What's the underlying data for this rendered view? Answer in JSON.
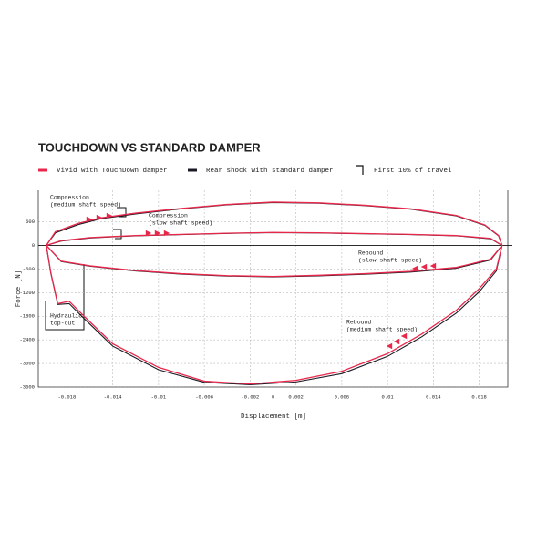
{
  "chart_data": {
    "type": "line",
    "title": "TOUCHDOWN VS STANDARD DAMPER",
    "x_label": "Displacement [m]",
    "y_label": "Force [N]",
    "legend_extra": "First 10% of travel",
    "xlim": [
      -0.0205,
      0.0205
    ],
    "ylim": [
      -3600,
      1400
    ],
    "xticks": [
      -0.018,
      -0.014,
      -0.01,
      -0.006,
      -0.002,
      0,
      0.002,
      0.006,
      0.01,
      0.014,
      0.018
    ],
    "yticks": [
      600,
      0,
      -600,
      -1200,
      -1800,
      -2400,
      -3000,
      -3600
    ],
    "grid": true,
    "series": [
      {
        "name": "Vivid with TouchDown damper",
        "color": "#e8274b",
        "x": [
          -0.0198,
          -0.019,
          -0.017,
          -0.015,
          -0.012,
          -0.008,
          -0.004,
          0,
          0.004,
          0.008,
          0.012,
          0.016,
          0.0185,
          0.0197,
          0.02,
          0.0195,
          0.018,
          0.016,
          0.013,
          0.01,
          0.006,
          0.002,
          -0.002,
          -0.006,
          -0.01,
          -0.014,
          -0.0165,
          -0.0178,
          -0.0188,
          -0.0194,
          -0.0198,
          null,
          -0.0198,
          -0.0185,
          -0.016,
          -0.012,
          -0.008,
          -0.004,
          0,
          0.004,
          0.008,
          0.012,
          0.016,
          0.019,
          0.02,
          0.019,
          0.016,
          0.012,
          0.008,
          0.004,
          0,
          -0.004,
          -0.008,
          -0.012,
          -0.016,
          -0.0185,
          -0.0198
        ],
        "values": [
          0,
          350,
          560,
          700,
          820,
          940,
          1040,
          1100,
          1080,
          1020,
          930,
          760,
          520,
          250,
          0,
          -600,
          -1100,
          -1650,
          -2250,
          -2750,
          -3200,
          -3430,
          -3520,
          -3450,
          -3100,
          -2500,
          -1800,
          -1420,
          -1480,
          -700,
          0,
          null,
          0,
          120,
          200,
          250,
          280,
          310,
          330,
          320,
          300,
          280,
          250,
          180,
          0,
          -350,
          -560,
          -660,
          -720,
          -760,
          -790,
          -770,
          -720,
          -640,
          -520,
          -400,
          0
        ]
      },
      {
        "name": "Rear shock with standard damper",
        "color": "#1a1a24",
        "x": [
          -0.0198,
          -0.019,
          -0.017,
          -0.015,
          -0.012,
          -0.008,
          -0.004,
          0,
          0.004,
          0.008,
          0.012,
          0.016,
          0.0185,
          0.0197,
          0.02,
          0.0195,
          0.018,
          0.016,
          0.013,
          0.01,
          0.006,
          0.002,
          -0.002,
          -0.006,
          -0.01,
          -0.014,
          -0.0165,
          -0.0178,
          -0.0188,
          -0.0194,
          -0.0198,
          null,
          -0.0198,
          -0.0185,
          -0.016,
          -0.012,
          -0.008,
          -0.004,
          0,
          0.004,
          0.008,
          0.012,
          0.016,
          0.019,
          0.02,
          0.019,
          0.016,
          0.012,
          0.008,
          0.004,
          0,
          -0.004,
          -0.008,
          -0.012,
          -0.016,
          -0.0185,
          -0.0198
        ],
        "values": [
          0,
          320,
          530,
          680,
          800,
          930,
          1030,
          1090,
          1070,
          1010,
          920,
          750,
          510,
          240,
          0,
          -650,
          -1180,
          -1720,
          -2320,
          -2820,
          -3260,
          -3470,
          -3540,
          -3480,
          -3160,
          -2560,
          -1860,
          -1480,
          -1500,
          -720,
          0,
          null,
          0,
          110,
          190,
          245,
          275,
          305,
          325,
          315,
          295,
          275,
          245,
          170,
          0,
          -370,
          -580,
          -680,
          -735,
          -775,
          -800,
          -780,
          -730,
          -650,
          -530,
          -410,
          0
        ]
      }
    ],
    "annotations": [
      {
        "lines": [
          "Compression",
          "(medium shaft speed)"
        ]
      },
      {
        "lines": [
          "Compression",
          "(slow shaft speed)"
        ]
      },
      {
        "lines": [
          "Rebound",
          "(slow shaft speed)"
        ]
      },
      {
        "lines": [
          "Rebound",
          "(medium shaft speed)"
        ]
      },
      {
        "lines": [
          "Hydraulic",
          "top-out"
        ]
      }
    ]
  }
}
